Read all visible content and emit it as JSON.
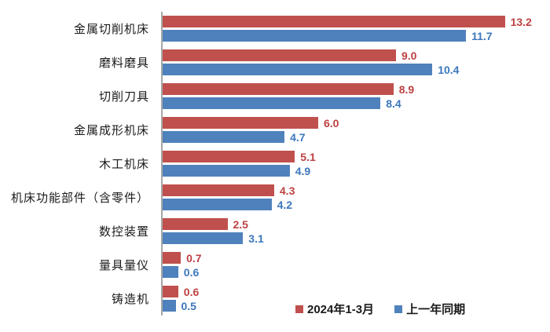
{
  "chart_data": {
    "type": "bar",
    "orientation": "horizontal",
    "title": "",
    "categories": [
      "金属切削机床",
      "磨料磨具",
      "切削刀具",
      "金属成形机床",
      "木工机床",
      "机床功能部件（含零件）",
      "数控装置",
      "量具量仪",
      "铸造机"
    ],
    "series": [
      {
        "name": "2024年1-3月",
        "color": "#C0504D",
        "label_color": "#BE4142",
        "values": [
          13.2,
          9.0,
          8.9,
          6.0,
          5.1,
          4.3,
          2.5,
          0.7,
          0.6
        ],
        "labels": [
          "13.2",
          "9.0",
          "8.9",
          "6.0",
          "5.1",
          "4.3",
          "2.5",
          "0.7",
          "0.6"
        ]
      },
      {
        "name": "上一年同期",
        "color": "#4F81BD",
        "label_color": "#3C77BD",
        "values": [
          11.7,
          10.4,
          8.4,
          4.7,
          4.9,
          4.2,
          3.1,
          0.6,
          0.5
        ],
        "labels": [
          "11.7",
          "10.4",
          "8.4",
          "4.7",
          "4.9",
          "4.2",
          "3.1",
          "0.6",
          "0.5"
        ]
      }
    ],
    "xlim": [
      0,
      15
    ],
    "value_axis_visible": false,
    "grid": false,
    "legend_position": "bottom-right"
  },
  "style_colors": {
    "axis_line": "#A6A6A6",
    "category_text": "#1A1A1A",
    "background": "#FFFFFF"
  }
}
